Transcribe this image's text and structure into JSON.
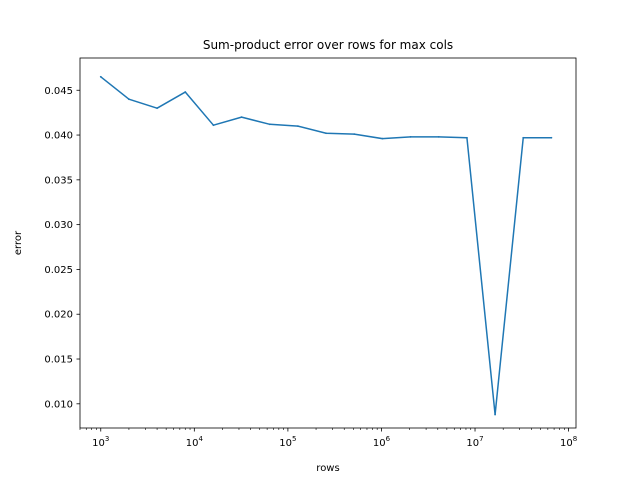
{
  "chart_data": {
    "type": "line",
    "title": "Sum-product error over rows for max cols",
    "xlabel": "rows",
    "ylabel": "error",
    "xscale": "log",
    "xlim": [
      600,
      120000000
    ],
    "ylim": [
      0.0073,
      0.0486
    ],
    "grid": false,
    "x_ticks": [
      {
        "value": 1000,
        "base": "10",
        "exp": "3"
      },
      {
        "value": 10000,
        "base": "10",
        "exp": "4"
      },
      {
        "value": 100000,
        "base": "10",
        "exp": "5"
      },
      {
        "value": 1000000,
        "base": "10",
        "exp": "6"
      },
      {
        "value": 10000000,
        "base": "10",
        "exp": "7"
      },
      {
        "value": 100000000,
        "base": "10",
        "exp": "8"
      }
    ],
    "y_ticks": [
      "0.010",
      "0.015",
      "0.020",
      "0.025",
      "0.030",
      "0.035",
      "0.040",
      "0.045"
    ],
    "series": [
      {
        "color": "#1f77b4",
        "x": [
          1000,
          2000,
          4000,
          8000,
          16000,
          32000,
          64000,
          128000,
          256000,
          512000,
          1024000,
          2048000,
          4096000,
          8192000,
          16384000,
          32768000,
          65536000
        ],
        "y": [
          0.0465,
          0.044,
          0.043,
          0.0448,
          0.0411,
          0.042,
          0.0412,
          0.041,
          0.0402,
          0.0401,
          0.0396,
          0.0398,
          0.0398,
          0.0397,
          0.0088,
          0.0397,
          0.0397
        ]
      }
    ]
  }
}
